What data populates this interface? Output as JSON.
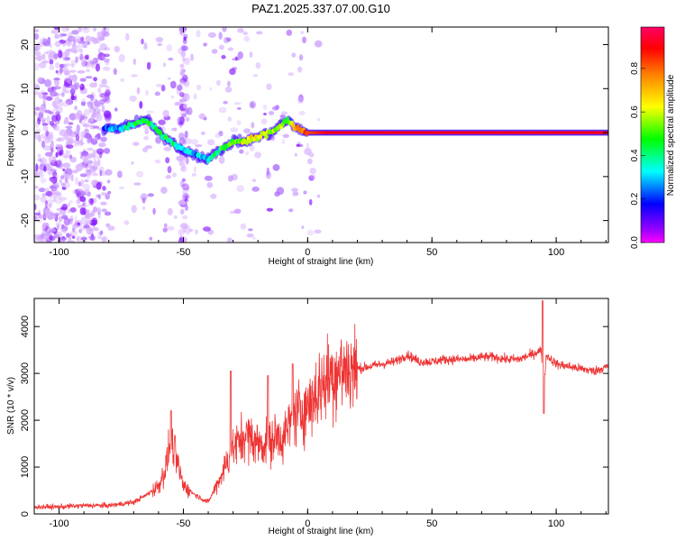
{
  "title": "PAZ1.2025.337.07.00.G10",
  "chart_data": [
    {
      "type": "heatmap",
      "name": "spectrogram",
      "xlabel": "Height of straight line (km)",
      "ylabel": "Frequency (Hz)",
      "xlim": [
        -110,
        121
      ],
      "ylim": [
        -25,
        24
      ],
      "xticks": [
        -100,
        -50,
        0,
        50,
        100
      ],
      "yticks": [
        -20,
        -10,
        0,
        10,
        20
      ],
      "colorbar": {
        "label": "Normalized spectral amplitude",
        "range": [
          0.0,
          0.99
        ],
        "ticks": [
          0.0,
          0.2,
          0.4,
          0.6,
          0.8
        ],
        "tick_labels": [
          "0.0",
          "0.2",
          "0.4",
          "0.6",
          "0.8"
        ],
        "colormap": [
          "#ff00ff",
          "#9900ff",
          "#0000ff",
          "#00ffff",
          "#00ff00",
          "#ffff00",
          "#ff8000",
          "#ff0000",
          "#ff0066"
        ]
      },
      "ridge": {
        "x": [
          -80,
          -75,
          -70,
          -65,
          -60,
          -55,
          -50,
          -45,
          -40,
          -35,
          -30,
          -25,
          -20,
          -15,
          -10,
          -8,
          -5,
          0,
          5,
          10,
          20,
          40,
          60,
          80,
          100,
          121
        ],
        "y": [
          1,
          1,
          2,
          3,
          0,
          -2,
          -4,
          -5,
          -6,
          -4,
          -2,
          -2,
          -1,
          0,
          2,
          3,
          1,
          0,
          0,
          0,
          0,
          0,
          0,
          0,
          0,
          0
        ],
        "amplitude": [
          0.3,
          0.35,
          0.45,
          0.5,
          0.45,
          0.45,
          0.4,
          0.35,
          0.4,
          0.45,
          0.55,
          0.6,
          0.6,
          0.6,
          0.55,
          0.5,
          0.7,
          0.8,
          0.85,
          0.9,
          0.9,
          0.9,
          0.9,
          0.9,
          0.9,
          0.9
        ]
      },
      "noise_region_km": [
        -110,
        -80
      ]
    },
    {
      "type": "line",
      "name": "snr",
      "xlabel": "Height of straight line (km)",
      "ylabel": "SNR (10 * v/v)",
      "xlim": [
        -110,
        121
      ],
      "ylim": [
        0,
        4600
      ],
      "xticks": [
        -100,
        -50,
        0,
        50,
        100
      ],
      "yticks": [
        0,
        1000,
        2000,
        3000,
        4000
      ],
      "color": "#ee3333",
      "series": {
        "name": "SNR",
        "x": [
          -110,
          -100,
          -90,
          -80,
          -70,
          -65,
          -60,
          -57,
          -55,
          -50,
          -45,
          -40,
          -35,
          -30,
          -25,
          -20,
          -15,
          -12,
          -10,
          -5,
          0,
          5,
          10,
          15,
          20,
          25,
          30,
          35,
          40,
          45,
          50,
          55,
          60,
          65,
          70,
          75,
          80,
          85,
          90,
          94,
          95,
          96,
          100,
          105,
          110,
          115,
          121
        ],
        "y": [
          150,
          150,
          180,
          180,
          250,
          400,
          600,
          1000,
          1600,
          600,
          400,
          250,
          800,
          1400,
          1700,
          1500,
          1500,
          1700,
          1600,
          2100,
          2300,
          2700,
          3000,
          3100,
          3100,
          3150,
          3200,
          3250,
          3400,
          3250,
          3250,
          3300,
          3300,
          3300,
          3350,
          3350,
          3300,
          3300,
          3400,
          3500,
          2600,
          3400,
          3200,
          3150,
          3100,
          3050,
          3150
        ]
      },
      "spikes": [
        {
          "x": -55,
          "y": 2200
        },
        {
          "x": -31,
          "y": 3050
        },
        {
          "x": -16,
          "y": 2950
        },
        {
          "x": -6,
          "y": 3200
        },
        {
          "x": 94.5,
          "y": 4550
        },
        {
          "x": 95,
          "y": 2150
        }
      ]
    }
  ]
}
